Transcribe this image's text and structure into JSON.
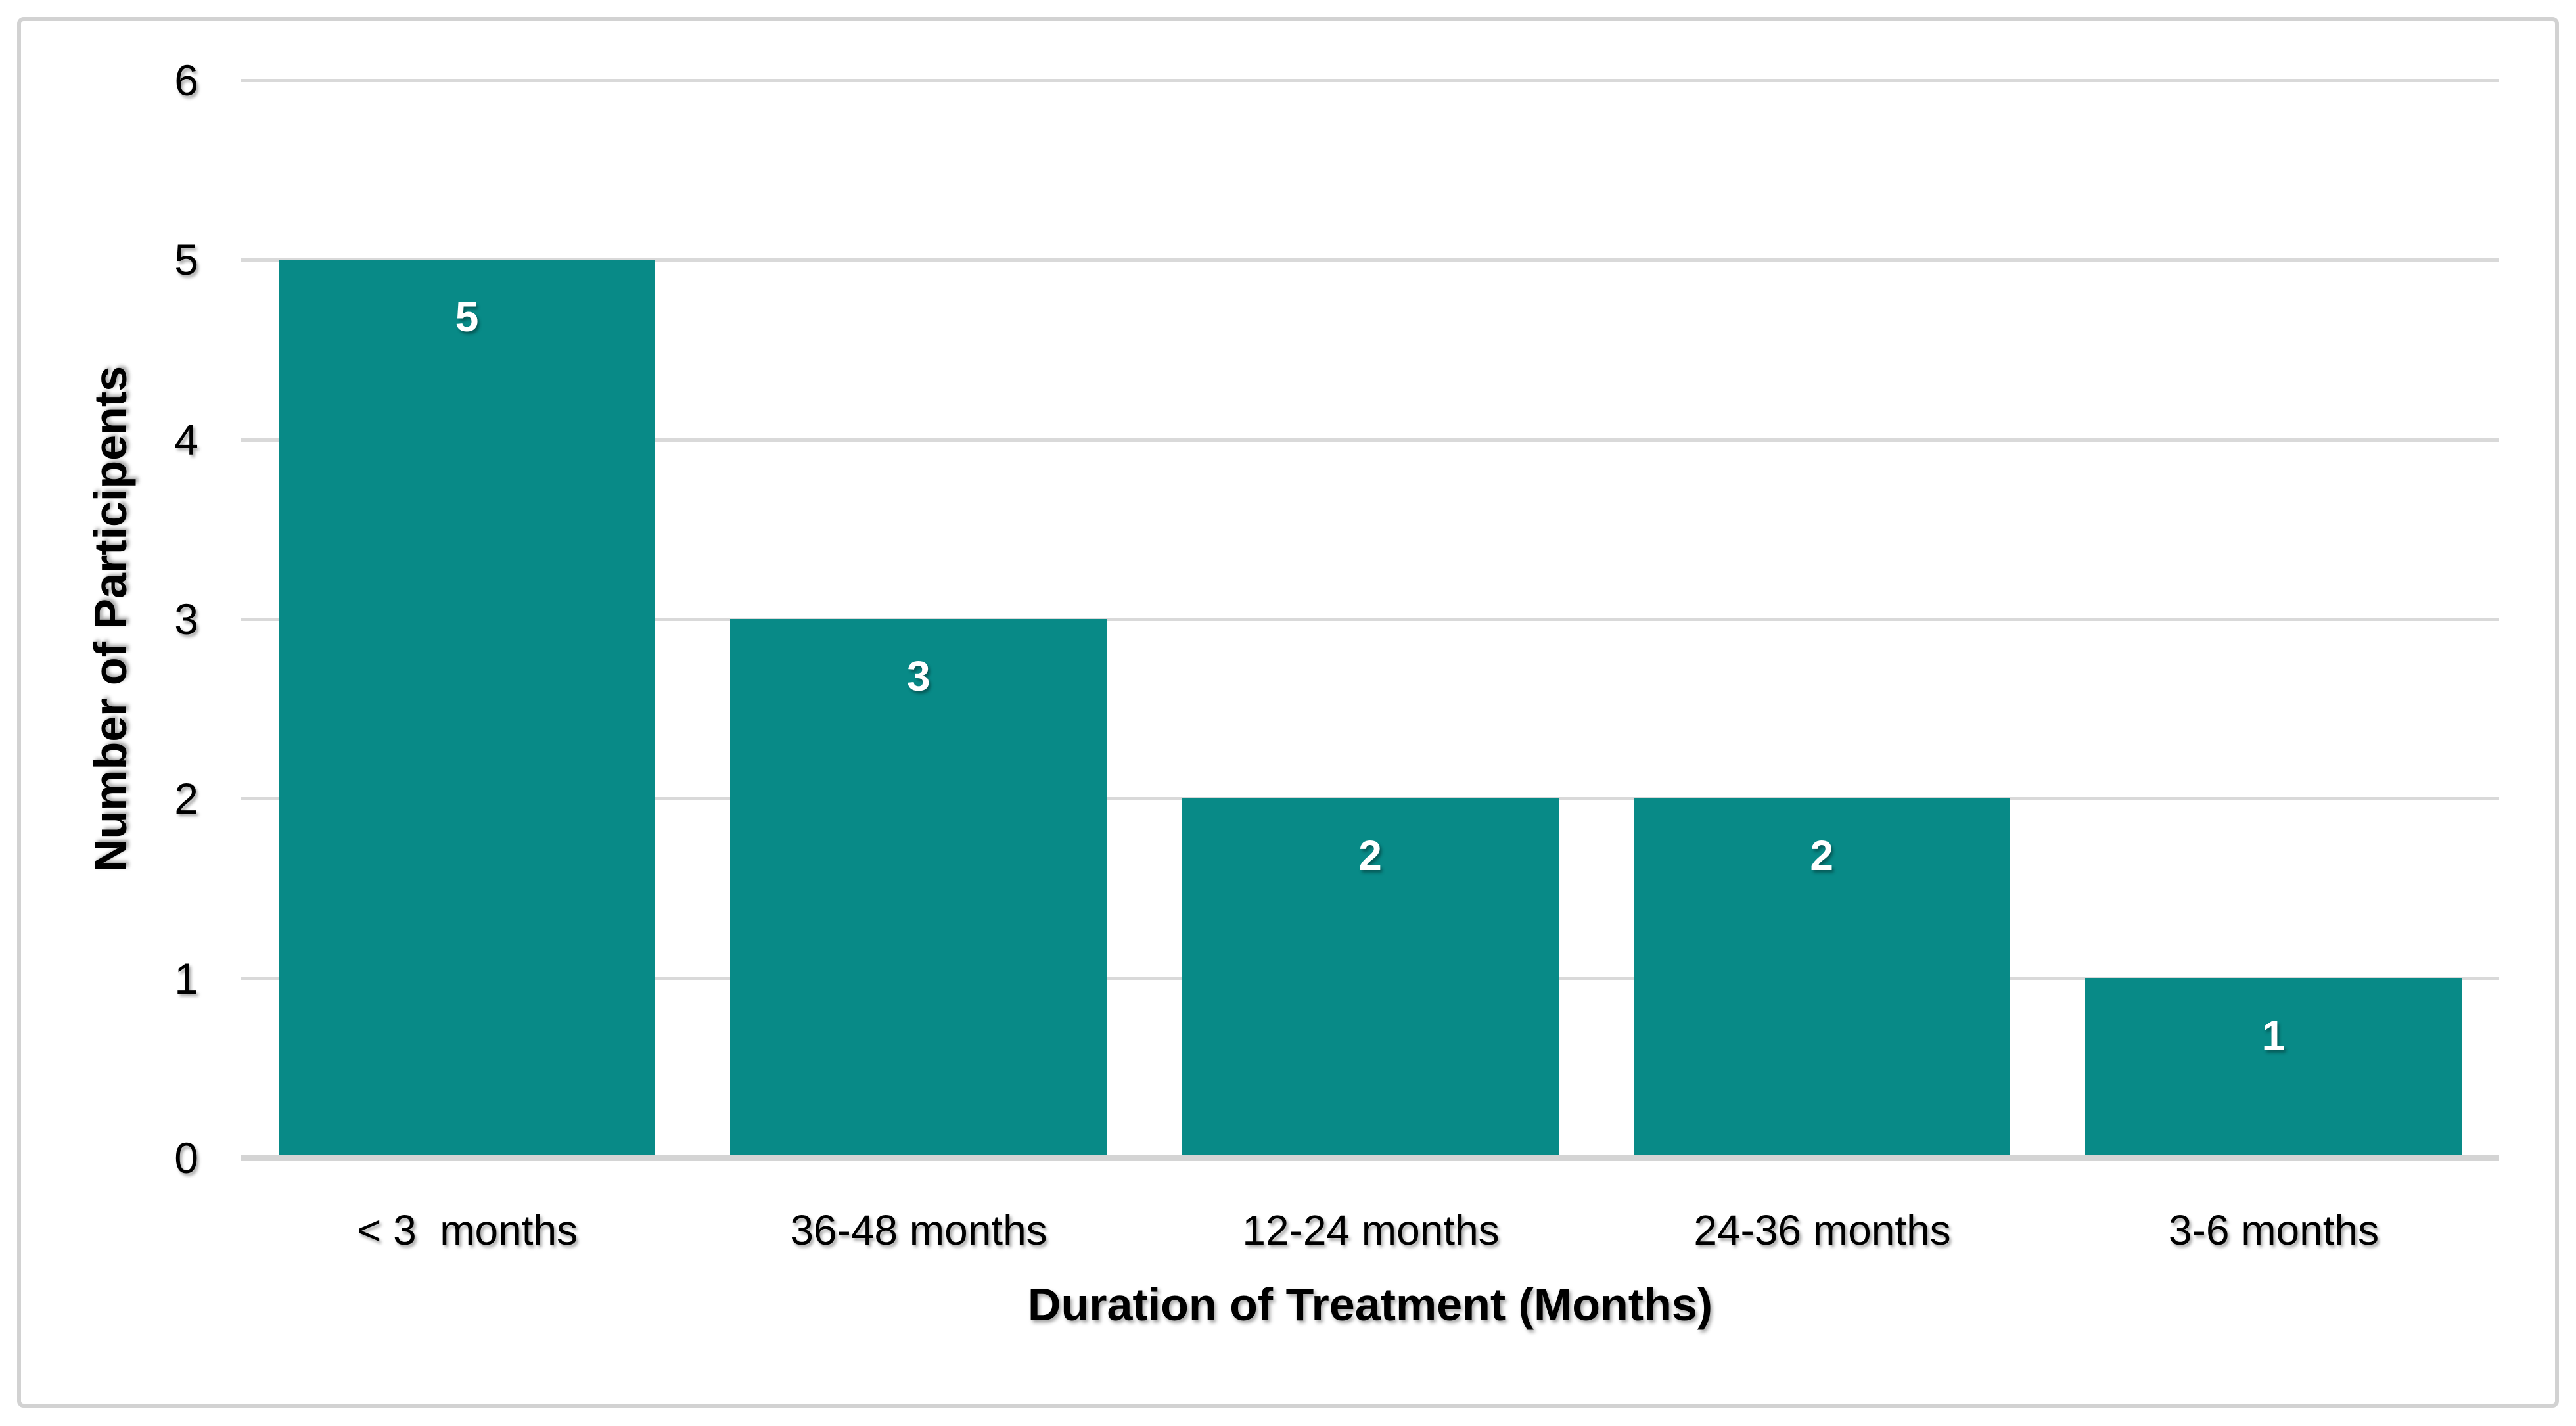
{
  "chart_data": {
    "type": "bar",
    "title": "",
    "xlabel": "Duration of Treatment (Months)",
    "ylabel": "Number of Participents",
    "categories": [
      "< 3  months",
      "36-48 months",
      "12-24 months",
      "24-36 months",
      "3-6 months"
    ],
    "values": [
      5,
      3,
      2,
      2,
      1
    ],
    "yticks": [
      0,
      1,
      2,
      3,
      4,
      5,
      6
    ],
    "ylim": [
      0,
      6
    ],
    "grid": true,
    "legend": false,
    "data_label_position": "inside-end",
    "colors": {
      "bar": "#088A87",
      "data_label": "#FFFFFF",
      "gridline": "#D9D9D9",
      "axis_line": "#D4D4D4",
      "text": "#000000",
      "frame_border": "#D2D2D2",
      "background": "#FFFFFF"
    }
  }
}
